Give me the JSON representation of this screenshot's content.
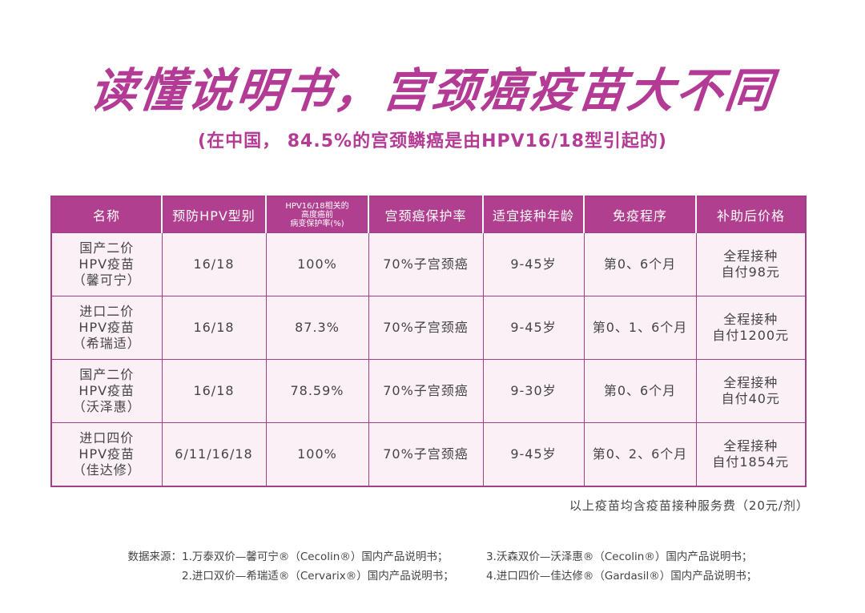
{
  "title": "读懂说明书，宫颈癌疫苗大不同",
  "subtitle": "(在中国， 84.5%的宫颈鳞癌是由HPV16/18型引起的)",
  "table": {
    "headers": [
      "名称",
      "预防HPV型别",
      "HPV16/18相关的\n高度癌前\n病变保护率(%)",
      "宫颈癌保护率",
      "适宜接种年龄",
      "免疫程序",
      "补助后价格"
    ],
    "rows": [
      {
        "name": "国产二价\nHPV疫苗\n（馨可宁）",
        "types": "16/18",
        "rate": "100%",
        "cervical": "70%子宫颈癌",
        "age": "9-45岁",
        "schedule": "第0、6个月",
        "price": "全程接种\n自付98元"
      },
      {
        "name": "进口二价\nHPV疫苗\n（希瑞适）",
        "types": "16/18",
        "rate": "87.3%",
        "cervical": "70%子宫颈癌",
        "age": "9-45岁",
        "schedule": "第0、1、6个月",
        "price": "全程接种\n自付1200元"
      },
      {
        "name": "国产二价\nHPV疫苗\n（沃泽惠）",
        "types": "16/18",
        "rate": "78.59%",
        "cervical": "70%子宫颈癌",
        "age": "9-30岁",
        "schedule": "第0、6个月",
        "price": "全程接种\n自付40元"
      },
      {
        "name": "进口四价\nHPV疫苗\n（佳达修）",
        "types": "6/11/16/18",
        "rate": "100%",
        "cervical": "70%子宫颈癌",
        "age": "9-45岁",
        "schedule": "第0、2、6个月",
        "price": "全程接种\n自付1854元"
      }
    ]
  },
  "note": "以上疫苗均含疫苗接种服务费（20元/剂）",
  "sources": {
    "label": "数据来源：",
    "item1": "1.万泰双价—馨可宁®（Cecolin®）国内产品说明书；",
    "item2": "2.进口双价—希瑞适®（Cervarix®）国内产品说明书；",
    "item3": "3.沃森双价—沃泽惠®（Cecolin®）国内产品说明书；",
    "item4": "4.进口四价—佳达修®（Gardasil®）国内产品说明书；"
  },
  "colors": {
    "accent": "#b43b95",
    "header_bg": "#b03f8f",
    "cell_bg": "#fcf0f7"
  }
}
